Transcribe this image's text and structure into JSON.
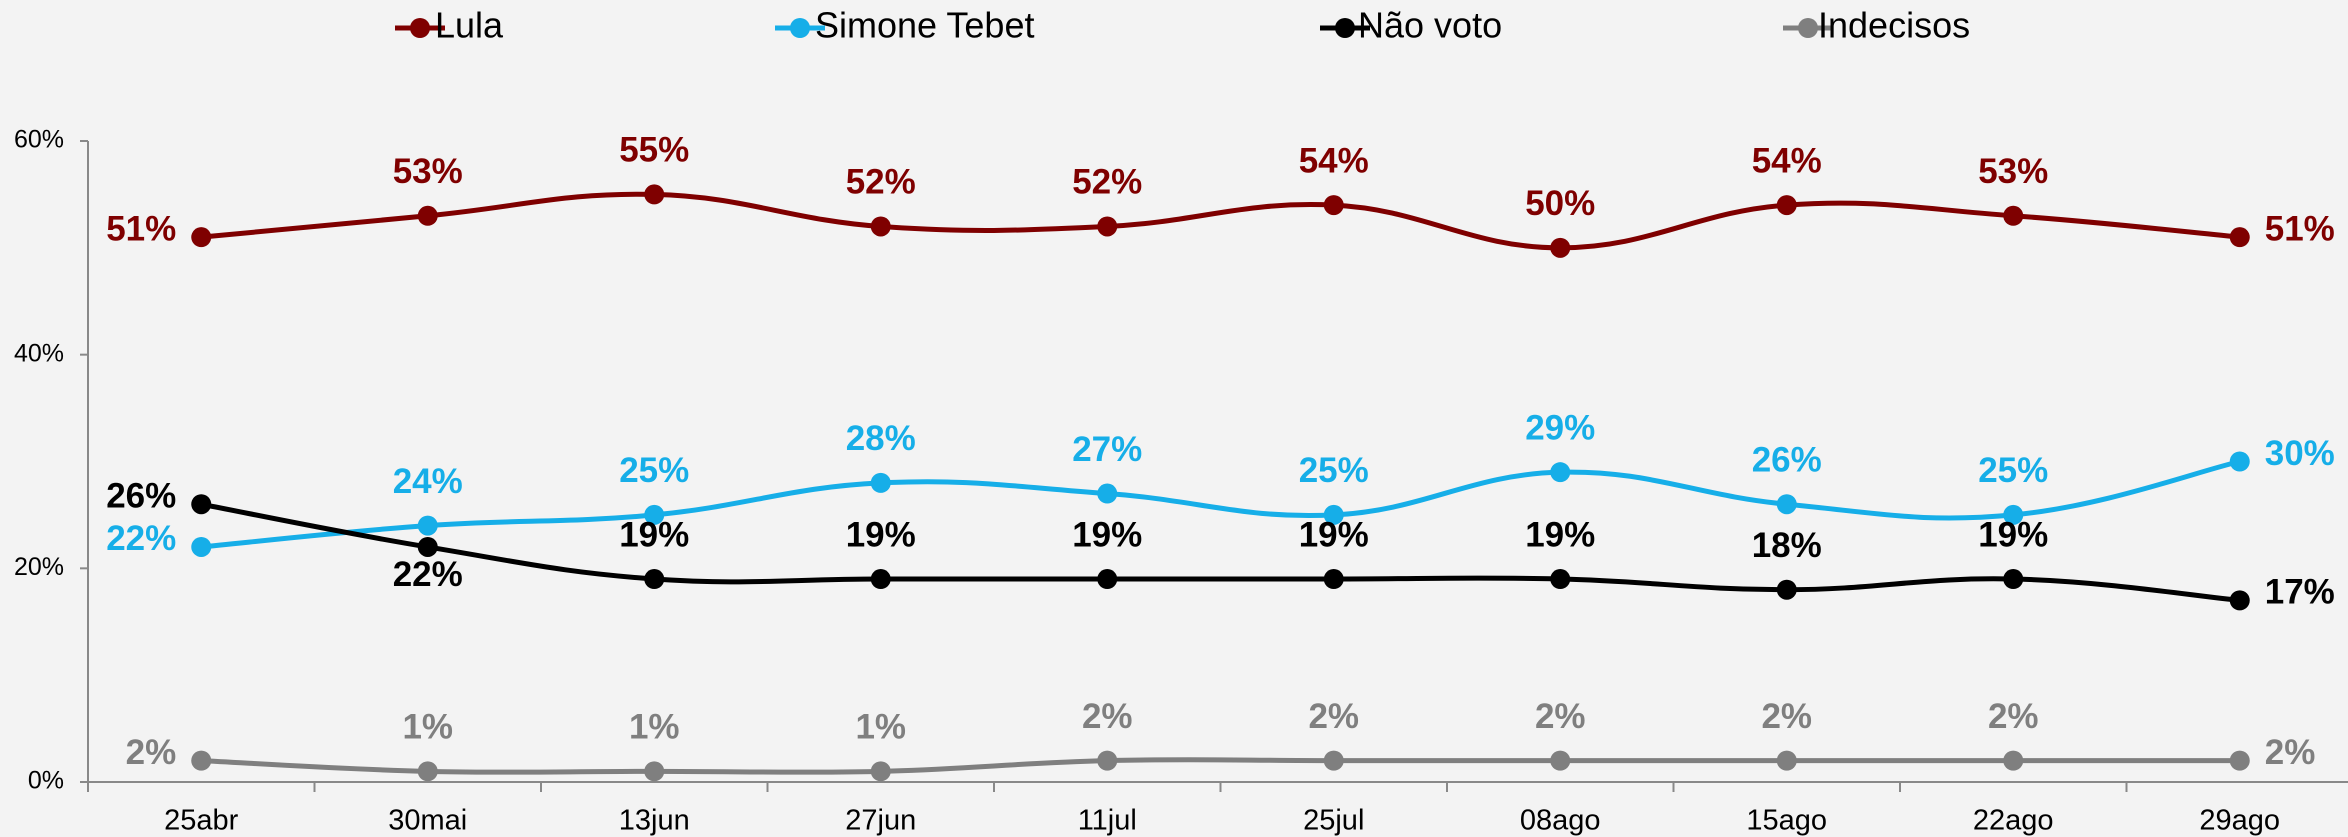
{
  "chart_data": {
    "type": "line",
    "categories": [
      "25abr",
      "30mai",
      "13jun",
      "27jun",
      "11jul",
      "25jul",
      "08ago",
      "15ago",
      "22ago",
      "29ago"
    ],
    "series": [
      {
        "name": "Lula",
        "color": "#7f0000",
        "values": [
          51,
          53,
          55,
          52,
          52,
          54,
          50,
          54,
          53,
          51
        ],
        "value_labels": [
          "51%",
          "53%",
          "55%",
          "52%",
          "52%",
          "54%",
          "50%",
          "54%",
          "53%",
          "51%"
        ]
      },
      {
        "name": "Simone Tebet",
        "color": "#16aee8",
        "values": [
          22,
          24,
          25,
          28,
          27,
          25,
          29,
          26,
          25,
          30
        ],
        "value_labels": [
          "22%",
          "24%",
          "25%",
          "28%",
          "27%",
          "25%",
          "29%",
          "26%",
          "25%",
          "30%"
        ]
      },
      {
        "name": "Não voto",
        "color": "#000000",
        "values": [
          26,
          22,
          19,
          19,
          19,
          19,
          19,
          18,
          19,
          17
        ],
        "value_labels": [
          "26%",
          "22%",
          "19%",
          "19%",
          "19%",
          "19%",
          "19%",
          "18%",
          "19%",
          "17%"
        ]
      },
      {
        "name": "Indecisos",
        "color": "#7f7f7f",
        "values": [
          2,
          1,
          1,
          1,
          2,
          2,
          2,
          2,
          2,
          2
        ],
        "value_labels": [
          "2%",
          "1%",
          "1%",
          "1%",
          "2%",
          "2%",
          "2%",
          "2%",
          "2%",
          "2%"
        ]
      }
    ],
    "ylim": [
      0,
      60
    ],
    "yticks": [
      {
        "value": 0,
        "label": "0%"
      },
      {
        "value": 20,
        "label": "20%"
      },
      {
        "value": 40,
        "label": "40%"
      },
      {
        "value": 60,
        "label": "60%"
      }
    ],
    "legend": "top"
  }
}
